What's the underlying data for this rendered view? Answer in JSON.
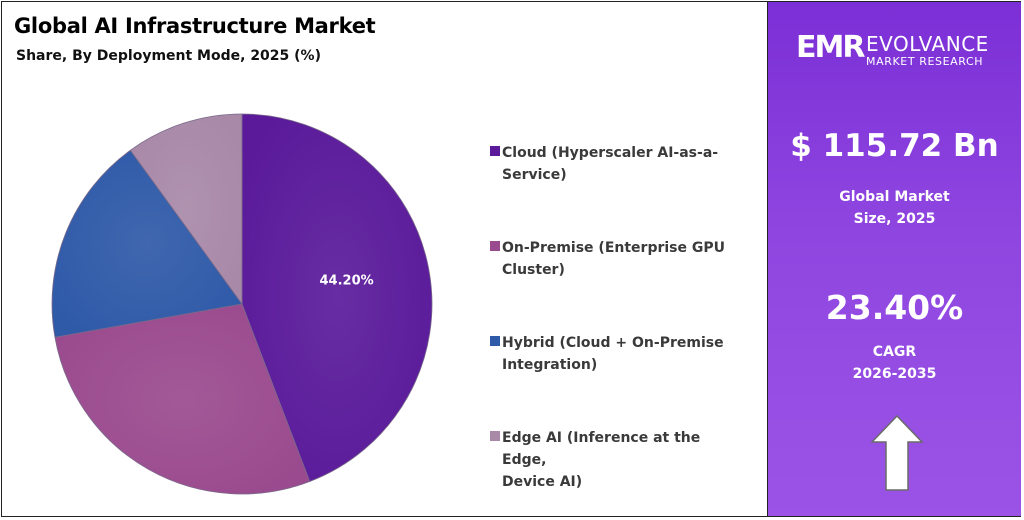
{
  "title": "Global AI Infrastructure Market",
  "subtitle": "Share, By Deployment Mode, 2025 (%)",
  "chart_data": {
    "type": "pie",
    "title": "Global AI Infrastructure Market",
    "subtitle": "Share, By Deployment Mode, 2025 (%)",
    "categories": [
      "Cloud (Hyperscaler AI-as-a-Service)",
      "On-Premise (Enterprise GPU Cluster)",
      "Hybrid (Cloud + On-Premise Integration)",
      "Edge AI (Inference at the Edge, Device AI)"
    ],
    "values": [
      44.2,
      28.0,
      17.8,
      10.0
    ],
    "data_labels": [
      "44.20%",
      "",
      "",
      ""
    ],
    "colors": [
      "#5a1a9a",
      "#9a4a8e",
      "#2f5aa8",
      "#a889a8"
    ],
    "legend_position": "right"
  },
  "legend": [
    {
      "line1": "Cloud (Hyperscaler AI-as-a-",
      "line2": "Service)",
      "color": "#5a1a9a"
    },
    {
      "line1": "On-Premise (Enterprise GPU",
      "line2": "Cluster)",
      "color": "#9a4a8e"
    },
    {
      "line1": "Hybrid (Cloud + On-Premise",
      "line2": "Integration)",
      "color": "#2f5aa8"
    },
    {
      "line1": "Edge AI (Inference at the Edge,",
      "line2": "Device AI)",
      "color": "#a889a8"
    }
  ],
  "brand": {
    "mark": "EMR",
    "name": "EVOLVANCE",
    "tagline": "MARKET RESEARCH"
  },
  "market_size": {
    "value": "$ 115.72 Bn",
    "label_line1": "Global Market",
    "label_line2": "Size, 2025"
  },
  "cagr": {
    "value": "23.40%",
    "label_line1": "CAGR",
    "label_line2": "2026-2035"
  },
  "arrow_icon": "up-arrow-icon"
}
